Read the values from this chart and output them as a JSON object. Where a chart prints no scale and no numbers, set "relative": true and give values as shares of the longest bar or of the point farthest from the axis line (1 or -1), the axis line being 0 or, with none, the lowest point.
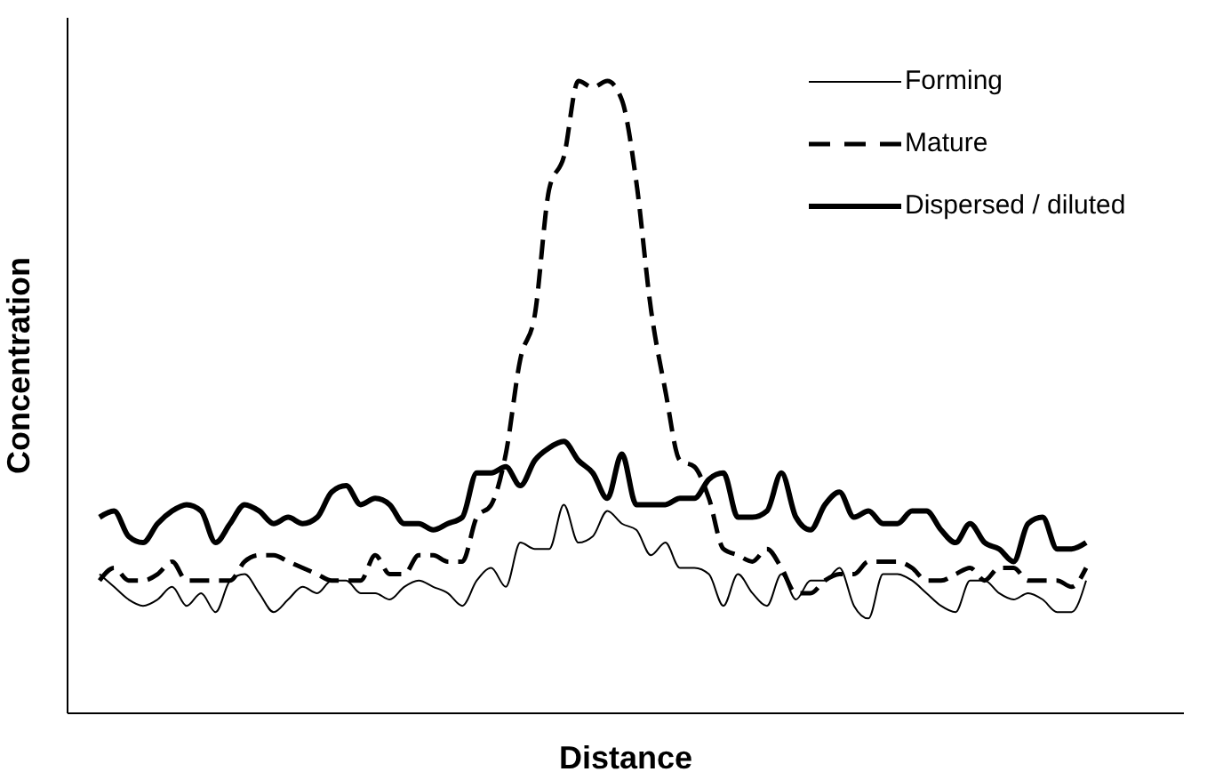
{
  "chart_data": {
    "type": "line",
    "relative": true,
    "xlabel": "Distance",
    "ylabel": "Concentration",
    "legend": "top right",
    "grid": false,
    "marker": "none",
    "categories": [
      null,
      null,
      null,
      null,
      null,
      null,
      null,
      null,
      null,
      null,
      null,
      null,
      null,
      null,
      null,
      null,
      null,
      null,
      null,
      null,
      null,
      null,
      null,
      null,
      null,
      null,
      null,
      null,
      null,
      null,
      null,
      null,
      null,
      null,
      null,
      null,
      null,
      null,
      null,
      null,
      null,
      null,
      null,
      null,
      null,
      null,
      null,
      null,
      null,
      null,
      null,
      null,
      null,
      null,
      null,
      null,
      null,
      null,
      null,
      null,
      null,
      null,
      null,
      null,
      null,
      null,
      null,
      null,
      null
    ],
    "series": [
      {
        "name": "Forming",
        "color": "#000000",
        "line_style": "solid",
        "values": [
          0.22,
          0.2,
          0.18,
          0.17,
          0.18,
          0.2,
          0.17,
          0.19,
          0.16,
          0.21,
          0.22,
          0.19,
          0.16,
          0.18,
          0.2,
          0.19,
          0.21,
          0.21,
          0.19,
          0.19,
          0.18,
          0.2,
          0.21,
          0.2,
          0.19,
          0.17,
          0.21,
          0.23,
          0.2,
          0.27,
          0.26,
          0.26,
          0.33,
          0.27,
          0.28,
          0.32,
          0.3,
          0.29,
          0.25,
          0.27,
          0.23,
          0.23,
          0.22,
          0.17,
          0.22,
          0.19,
          0.17,
          0.22,
          0.18,
          0.21,
          0.21,
          0.23,
          0.17,
          0.15,
          0.22,
          0.22,
          0.21,
          0.19,
          0.17,
          0.16,
          0.21,
          0.21,
          0.19,
          0.18,
          0.19,
          0.18,
          0.16,
          0.16,
          0.21
        ]
      },
      {
        "name": "Mature",
        "color": "#000000",
        "line_style": "dashed",
        "values": [
          0.21,
          0.23,
          0.21,
          0.21,
          0.22,
          0.24,
          0.21,
          0.21,
          0.21,
          0.21,
          0.24,
          0.25,
          0.25,
          0.24,
          0.23,
          0.22,
          0.21,
          0.21,
          0.21,
          0.25,
          0.22,
          0.22,
          0.25,
          0.25,
          0.24,
          0.24,
          0.31,
          0.33,
          0.41,
          0.56,
          0.63,
          0.83,
          0.88,
          1.0,
          0.99,
          1.0,
          0.97,
          0.84,
          0.64,
          0.51,
          0.4,
          0.39,
          0.34,
          0.26,
          0.25,
          0.24,
          0.26,
          0.23,
          0.19,
          0.19,
          0.21,
          0.22,
          0.22,
          0.24,
          0.24,
          0.24,
          0.23,
          0.21,
          0.21,
          0.22,
          0.23,
          0.21,
          0.23,
          0.23,
          0.21,
          0.21,
          0.21,
          0.2,
          0.23
        ]
      },
      {
        "name": "Dispersed / diluted",
        "color": "#000000",
        "line_style": "solid",
        "values": [
          0.31,
          0.32,
          0.28,
          0.27,
          0.3,
          0.32,
          0.33,
          0.32,
          0.27,
          0.3,
          0.33,
          0.32,
          0.3,
          0.31,
          0.3,
          0.31,
          0.35,
          0.36,
          0.33,
          0.34,
          0.33,
          0.3,
          0.3,
          0.29,
          0.3,
          0.31,
          0.38,
          0.38,
          0.39,
          0.36,
          0.4,
          0.42,
          0.43,
          0.4,
          0.38,
          0.34,
          0.41,
          0.33,
          0.33,
          0.33,
          0.34,
          0.34,
          0.37,
          0.38,
          0.31,
          0.31,
          0.32,
          0.38,
          0.31,
          0.29,
          0.33,
          0.35,
          0.31,
          0.32,
          0.3,
          0.3,
          0.32,
          0.32,
          0.29,
          0.27,
          0.3,
          0.27,
          0.26,
          0.24,
          0.3,
          0.31,
          0.26,
          0.26,
          0.27
        ]
      }
    ]
  }
}
